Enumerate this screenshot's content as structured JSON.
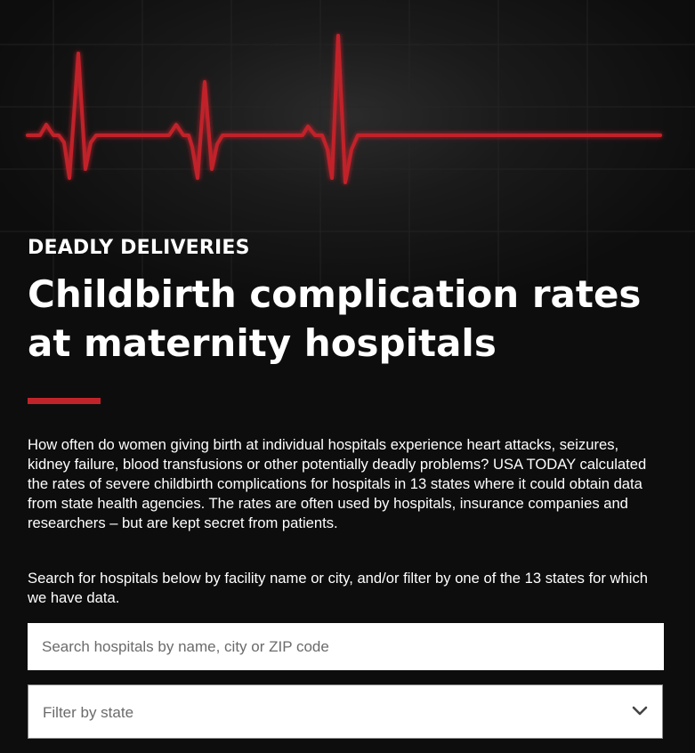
{
  "hero": {
    "line_color": "#c1232b"
  },
  "header": {
    "kicker": "DEADLY DELIVERIES",
    "title": "Childbirth complication rates at maternity hospitals"
  },
  "body": {
    "intro": "How often do women giving birth at individual hospitals experience heart attacks, seizures, kidney failure, blood transfusions or other potentially deadly problems? USA TODAY calculated the rates of severe childbirth complications for hospitals in 13 states where it could obtain data from state health agencies. The rates are often used by hospitals, insurance companies and researchers – but are kept secret from patients.",
    "instructions": "Search for hospitals below by facility name or city, and/or filter by one of the 13 states for which we have data."
  },
  "search": {
    "placeholder": "Search hospitals by name, city or ZIP code",
    "value": ""
  },
  "state_filter": {
    "label": "Filter by state",
    "icon": "chevron-down-icon"
  },
  "colors": {
    "background": "#0d0d0d",
    "accent": "#c1232b",
    "text": "#ffffff"
  }
}
